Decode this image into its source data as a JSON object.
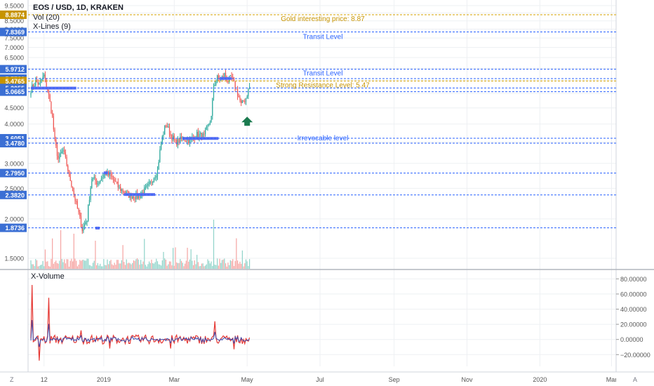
{
  "legend": {
    "title": "EOS / USD, 1D, KRAKEN",
    "vol": "Vol (20)",
    "xlines": "X-Lines (9)"
  },
  "indicator": {
    "name": "X-Volume"
  },
  "corner": {
    "left": "Z",
    "right": "A"
  },
  "colors": {
    "grid": "#eef0f3",
    "blue_line": "#2962ff",
    "gold_line": "#d4a000",
    "up": "#26a69a",
    "down": "#ef5350",
    "vol_up": "#8fd3c9",
    "vol_down": "#f5a4a2",
    "axis_blue_bg": "#3b6fd4",
    "axis_gold_bg": "#c79400",
    "zone": "#5a6ef0",
    "arrow": "#1b7a4f",
    "osc_red": "#e53935",
    "osc_blue": "#3949ab",
    "label_blue": "#2962ff",
    "label_gold": "#c79400"
  },
  "chart_data": [
    {
      "type": "candlestick",
      "y_scale": "log",
      "y_ticks": [
        "9.5000",
        "9.0000",
        "8.5000",
        "8.0000",
        "7.5000",
        "7.0000",
        "6.5000",
        "6.0000",
        "5.5000",
        "5.0000",
        "4.5000",
        "4.0000",
        "3.5000",
        "3.0000",
        "2.5000",
        "2.0000",
        "1.5000"
      ],
      "x_ticks": [
        "12",
        "2019",
        "Mar",
        "May",
        "Jul",
        "Sep",
        "Nov",
        "2020",
        "Mar"
      ],
      "axis_labels": [
        {
          "text": "8.8874",
          "color": "gold"
        },
        {
          "text": "7.8369",
          "color": "blue"
        },
        {
          "text": "5.9712",
          "color": "blue"
        },
        {
          "text": "5.5721",
          "color": "blue"
        },
        {
          "text": "5.4765",
          "color": "gold"
        },
        {
          "text": "5.2055",
          "color": "blue"
        },
        {
          "text": "5.0665",
          "color": "blue"
        },
        {
          "text": "3.6051",
          "color": "blue"
        },
        {
          "text": "3.4780",
          "color": "blue"
        },
        {
          "text": "2.7950",
          "color": "blue"
        },
        {
          "text": "2.3820",
          "color": "blue"
        },
        {
          "text": "1.8736",
          "color": "blue"
        }
      ],
      "levels": [
        {
          "price": 8.8874,
          "color": "gold",
          "label": "Gold interesting price: 8.87"
        },
        {
          "price": 7.8369,
          "color": "blue",
          "label": "Transit Level"
        },
        {
          "price": 5.9712,
          "color": "blue",
          "label": "Transit Level"
        },
        {
          "price": 5.5721,
          "color": "blue",
          "label": ""
        },
        {
          "price": 5.4765,
          "color": "gold",
          "label": "Strong Resistance Level: 5.47"
        },
        {
          "price": 5.2055,
          "color": "blue",
          "label": ""
        },
        {
          "price": 5.0665,
          "color": "blue",
          "label": ""
        },
        {
          "price": 3.6051,
          "color": "blue",
          "label": ""
        },
        {
          "price": 3.478,
          "color": "blue",
          "label": "Irrevocable level"
        },
        {
          "price": 2.795,
          "color": "blue",
          "label": ""
        },
        {
          "price": 2.382,
          "color": "blue",
          "label": ""
        },
        {
          "price": 1.8736,
          "color": "blue",
          "label": ""
        }
      ],
      "zones": [
        {
          "start": "2018-11-01",
          "end": "2018-12-09",
          "price": 5.2
        },
        {
          "start": "2019-01-01",
          "end": "2019-01-04",
          "price": 2.8
        },
        {
          "start": "2018-12-25",
          "end": "2018-12-27",
          "price": 1.87
        },
        {
          "start": "2019-01-18",
          "end": "2019-02-13",
          "price": 2.39
        },
        {
          "start": "2019-03-08",
          "end": "2019-04-07",
          "price": 3.6
        },
        {
          "start": "2019-04-08",
          "end": "2019-04-18",
          "price": 5.58
        }
      ],
      "anchors": {
        "start": "2018-11-01",
        "end": "2019-05-05"
      },
      "waypoints": [
        {
          "date": "2018-11-01",
          "price": 5.15
        },
        {
          "date": "2018-11-05",
          "price": 5.45
        },
        {
          "date": "2018-11-08",
          "price": 5.35
        },
        {
          "date": "2018-11-12",
          "price": 5.7
        },
        {
          "date": "2018-11-14",
          "price": 5.3
        },
        {
          "date": "2018-11-16",
          "price": 4.9
        },
        {
          "date": "2018-11-19",
          "price": 4.2
        },
        {
          "date": "2018-11-21",
          "price": 3.5
        },
        {
          "date": "2018-11-24",
          "price": 3.1
        },
        {
          "date": "2018-11-28",
          "price": 3.3
        },
        {
          "date": "2018-12-03",
          "price": 2.75
        },
        {
          "date": "2018-12-08",
          "price": 2.3
        },
        {
          "date": "2018-12-14",
          "price": 1.85
        },
        {
          "date": "2018-12-18",
          "price": 2.0
        },
        {
          "date": "2018-12-22",
          "price": 2.7
        },
        {
          "date": "2018-12-27",
          "price": 2.6
        },
        {
          "date": "2019-01-02",
          "price": 2.8
        },
        {
          "date": "2019-01-08",
          "price": 2.7
        },
        {
          "date": "2019-01-14",
          "price": 2.5
        },
        {
          "date": "2019-01-22",
          "price": 2.38
        },
        {
          "date": "2019-01-30",
          "price": 2.35
        },
        {
          "date": "2019-02-08",
          "price": 2.55
        },
        {
          "date": "2019-02-15",
          "price": 2.85
        },
        {
          "date": "2019-02-18",
          "price": 3.5
        },
        {
          "date": "2019-02-22",
          "price": 4.0
        },
        {
          "date": "2019-02-26",
          "price": 3.7
        },
        {
          "date": "2019-03-02",
          "price": 3.5
        },
        {
          "date": "2019-03-08",
          "price": 3.6
        },
        {
          "date": "2019-03-14",
          "price": 3.55
        },
        {
          "date": "2019-03-20",
          "price": 3.7
        },
        {
          "date": "2019-03-26",
          "price": 3.65
        },
        {
          "date": "2019-04-01",
          "price": 4.2
        },
        {
          "date": "2019-04-03",
          "price": 5.3
        },
        {
          "date": "2019-04-06",
          "price": 5.6
        },
        {
          "date": "2019-04-09",
          "price": 5.55
        },
        {
          "date": "2019-04-12",
          "price": 5.75
        },
        {
          "date": "2019-04-15",
          "price": 5.5
        },
        {
          "date": "2019-04-18",
          "price": 5.6
        },
        {
          "date": "2019-04-20",
          "price": 5.35
        },
        {
          "date": "2019-04-23",
          "price": 5.0
        },
        {
          "date": "2019-04-26",
          "price": 4.6
        },
        {
          "date": "2019-04-30",
          "price": 4.85
        },
        {
          "date": "2019-05-03",
          "price": 5.25
        }
      ]
    },
    {
      "type": "line",
      "title": "X-Volume",
      "y_ticks": [
        "80.00000",
        "60.00000",
        "40.00000",
        "20.00000",
        "0.00000",
        "−20.00000"
      ],
      "ylim": [
        -29,
        84
      ],
      "series": [
        {
          "color": "red"
        },
        {
          "color": "blue"
        }
      ],
      "spikes": [
        {
          "date": "2018-11-02",
          "value": 72
        },
        {
          "date": "2018-11-16",
          "value": 55
        },
        {
          "date": "2018-11-08",
          "value": -28
        },
        {
          "date": "2018-12-13",
          "value": 12
        },
        {
          "date": "2019-01-06",
          "value": -12
        },
        {
          "date": "2019-04-04",
          "value": 24
        },
        {
          "date": "2019-02-26",
          "value": -12
        },
        {
          "date": "2019-04-20",
          "value": -13
        }
      ]
    }
  ]
}
